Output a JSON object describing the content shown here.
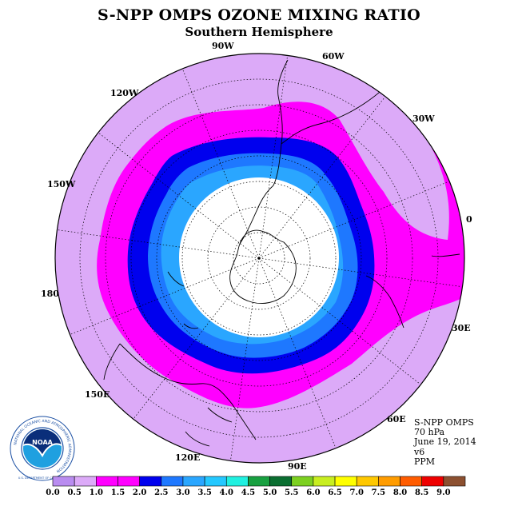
{
  "title": "S-NPP OMPS OZONE MIXING RATIO",
  "subtitle": "Southern Hemisphere",
  "longitude_labels": {
    "lon_90w": "90W",
    "lon_60w": "60W",
    "lon_120w": "120W",
    "lon_30w": "30W",
    "lon_150w": "150W",
    "lon_0": "0",
    "lon_180": "180",
    "lon_30e": "30E",
    "lon_150e": "150E",
    "lon_60e": "60E",
    "lon_120e": "120E",
    "lon_90e": "90E"
  },
  "info": {
    "instrument": "S-NPP OMPS",
    "level": "70 hPa",
    "date": "June 19, 2014",
    "version": "v6",
    "units": "PPM"
  },
  "colorbar": {
    "ticks": [
      "0.0",
      "0.5",
      "1.0",
      "1.5",
      "2.0",
      "2.5",
      "3.0",
      "3.5",
      "4.0",
      "4.5",
      "5.0",
      "5.5",
      "6.0",
      "6.5",
      "7.0",
      "7.5",
      "8.0",
      "8.5",
      "9.0"
    ],
    "colors": [
      "#b98cf0",
      "#dcaaf8",
      "#ff00ff",
      "#ff00ff",
      "#0000ee",
      "#1e78ff",
      "#2aa6ff",
      "#24c8ff",
      "#20f0e0",
      "#18a040",
      "#0a6e30",
      "#7cd020",
      "#c8ee20",
      "#ffff00",
      "#ffc800",
      "#ff9c00",
      "#ff5c00",
      "#ee0000",
      "#8c5030"
    ]
  },
  "logo": {
    "name": "NOAA",
    "ring_text": "NATIONAL OCEANIC AND ATMOSPHERIC ADMINISTRATION",
    "bottom_text": "U.S. DEPARTMENT OF COMMERCE"
  },
  "colors": {
    "outer": "#dcaaf8",
    "magenta": "#ff00ff",
    "blue": "#0000ee",
    "mid_blue": "#1e78ff",
    "light_blue": "#2aa6ff",
    "center": "#ffffff"
  }
}
